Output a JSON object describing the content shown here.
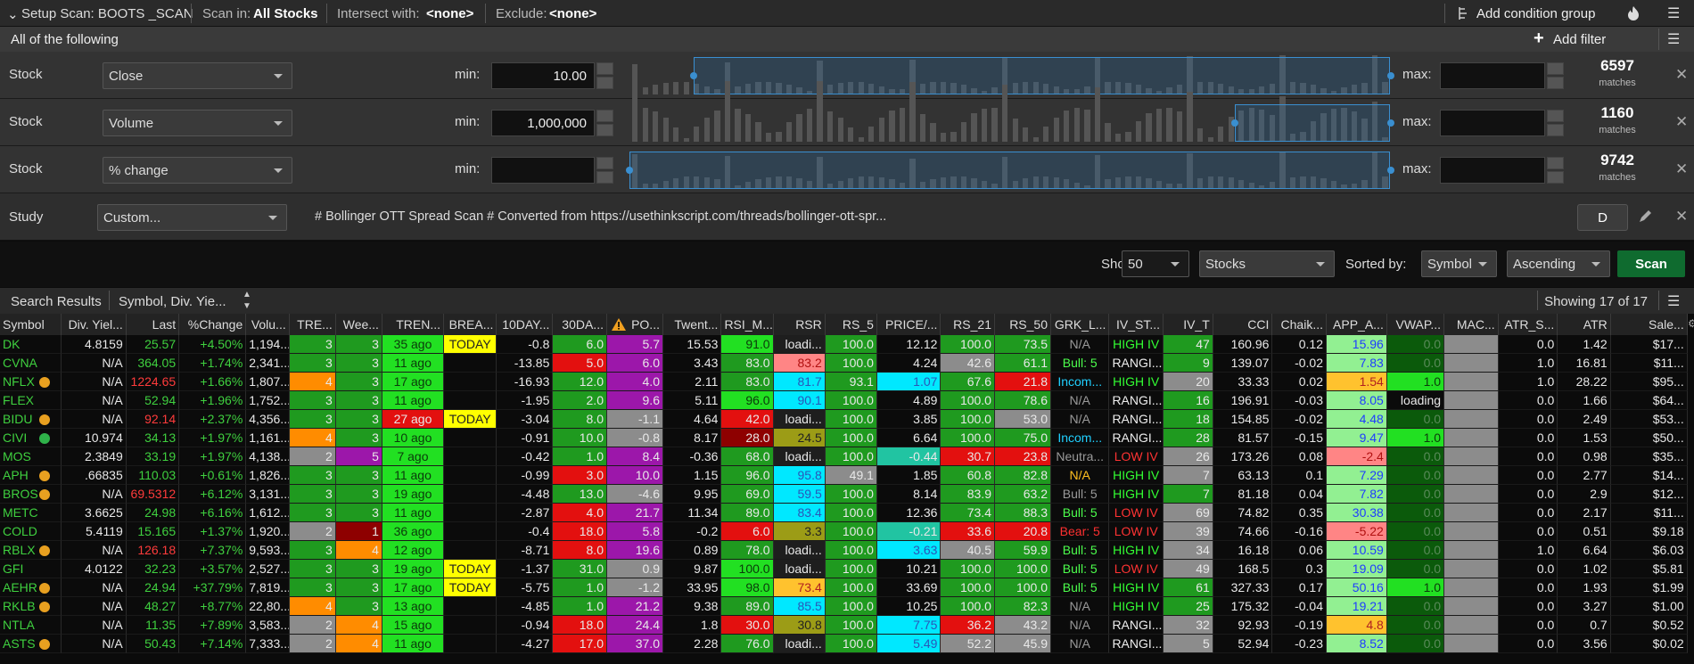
{
  "toolbar": {
    "setup_scan": "Setup Scan: BOOTS _SCAN",
    "scan_in_label": "Scan in:",
    "scan_in": "All Stocks",
    "intersect_label": "Intersect with:",
    "intersect": "<none>",
    "exclude_label": "Exclude:",
    "exclude": "<none>",
    "add_condition_group": "Add condition group"
  },
  "group": {
    "title": "All of the following",
    "add_filter": "Add filter"
  },
  "filters": [
    {
      "type": "Stock",
      "field": "Close",
      "min_label": "min:",
      "min": "10.00",
      "max_label": "max:",
      "matches": "6597",
      "matches_label": "matches"
    },
    {
      "type": "Stock",
      "field": "Volume",
      "min_label": "min:",
      "min": "1,000,000",
      "max_label": "max:",
      "matches": "1160",
      "matches_label": "matches"
    },
    {
      "type": "Stock",
      "field": "% change",
      "min_label": "min:",
      "max_label": "max:",
      "matches": "9742",
      "matches_label": "matches"
    }
  ],
  "study": {
    "type": "Study",
    "field": "Custom...",
    "script": "# Bollinger OTT Spread Scan # Converted from https://usethinkscript.com/threads/bollinger-ott-spr...",
    "aggregation": "D"
  },
  "controls": {
    "show_label": "Show:",
    "show": "50",
    "asset": "Stocks",
    "sorted_label": "Sorted by:",
    "sort_field": "Symbol",
    "sort_order": "Ascending",
    "scan": "Scan"
  },
  "results": {
    "tab": "Search Results",
    "columns_tab": "Symbol, Div. Yie...",
    "count": "Showing 17 of 17"
  },
  "table": {
    "columns": [
      "Symbol",
      "Div. Yiel...",
      "Last",
      "%Change",
      "Volu...",
      "TRE...",
      "Wee...",
      "TREN...",
      "BREA...",
      "10DAY...",
      "30DA...",
      "PO...",
      "Twent...",
      "RSI_M...",
      "RSR",
      "RS_5",
      "PRICE/...",
      "RS_21",
      "RS_50",
      "GRK_L...",
      "IV_ST...",
      "IV_T",
      "CCI",
      "Chaik...",
      "APP_A...",
      "VWAP...",
      "MAC...",
      "ATR_S...",
      "ATR",
      "Sale..."
    ],
    "rows": [
      [
        "DK",
        "4.8159",
        "25.57",
        "+4.50%",
        "1,194...",
        "3",
        "3",
        "35 ago",
        "TODAY",
        "-0.8",
        "6.0",
        "5.7",
        "15.53",
        "91.0",
        "loadi...",
        "100.0",
        "12.12",
        "100.0",
        "73.5",
        "N/A",
        "HIGH IV",
        "47",
        "160.96",
        "0.12",
        "15.96",
        "0.0",
        null,
        "0.0",
        "1.42",
        "$17..."
      ],
      [
        "CVNA",
        "N/A",
        "364.05",
        "+1.74%",
        "2,341...",
        "3",
        "3",
        "11 ago",
        null,
        "-13.85",
        "5.0",
        "6.0",
        "3.43",
        "83.0",
        "83.2",
        "100.0",
        "4.24",
        "42.6",
        "61.1",
        "Bull: 5",
        "RANGI...",
        "9",
        "139.07",
        "-0.02",
        "7.83",
        "0.0",
        null,
        "1.0",
        "16.81",
        "$11..."
      ],
      [
        "NFLX",
        "N/A",
        "1224.65",
        "+1.66%",
        "1,807...",
        "4",
        "3",
        "17 ago",
        null,
        "-16.93",
        "12.0",
        "4.0",
        "2.11",
        "83.0",
        "81.7",
        "93.1",
        "1.07",
        "67.6",
        "21.8",
        "Incom...",
        "HIGH IV",
        "20",
        "33.33",
        "0.02",
        "1.54",
        "1.0",
        null,
        "1.0",
        "28.22",
        "$95..."
      ],
      [
        "FLEX",
        "N/A",
        "52.94",
        "+1.96%",
        "1,752...",
        "3",
        "3",
        "11 ago",
        null,
        "-1.95",
        "2.0",
        "9.6",
        "5.11",
        "96.0",
        "90.1",
        "100.0",
        "4.89",
        "100.0",
        "78.6",
        "N/A",
        "RANGI...",
        "16",
        "196.91",
        "-0.03",
        "8.05",
        "loading",
        null,
        "0.0",
        "1.66",
        "$64..."
      ],
      [
        "BIDU",
        "N/A",
        "92.14",
        "+2.37%",
        "4,356...",
        "3",
        "3",
        "27 ago",
        "TODAY",
        "-3.04",
        "8.0",
        "-1.1",
        "4.64",
        "42.0",
        "loadi...",
        "100.0",
        "3.85",
        "100.0",
        "53.0",
        "N/A",
        "RANGI...",
        "18",
        "154.85",
        "-0.02",
        "4.48",
        "0.0",
        null,
        "0.0",
        "2.49",
        "$53..."
      ],
      [
        "CIVI",
        "10.974",
        "34.13",
        "+1.97%",
        "1,161...",
        "4",
        "3",
        "10 ago",
        null,
        "-0.91",
        "10.0",
        "-0.8",
        "8.17",
        "28.0",
        "24.5",
        "100.0",
        "6.64",
        "100.0",
        "75.0",
        "Incom...",
        "RANGI...",
        "28",
        "81.57",
        "-0.15",
        "9.47",
        "1.0",
        null,
        "0.0",
        "1.53",
        "$50..."
      ],
      [
        "MOS",
        "2.3849",
        "33.19",
        "+1.97%",
        "4,138...",
        "2",
        "5",
        "7 ago",
        null,
        "-0.42",
        "1.0",
        "8.4",
        "-0.36",
        "68.0",
        "loadi...",
        "100.0",
        "-0.44",
        "30.7",
        "23.8",
        "Neutra...",
        "LOW IV",
        "26",
        "173.26",
        "0.08",
        "-2.4",
        "0.0",
        null,
        "0.0",
        "0.98",
        "$35..."
      ],
      [
        "APH",
        ".66835",
        "110.03",
        "+0.61%",
        "1,826...",
        "3",
        "3",
        "11 ago",
        null,
        "-0.99",
        "3.0",
        "10.0",
        "1.15",
        "96.0",
        "95.8",
        "49.1",
        "1.85",
        "60.8",
        "82.8",
        "N/A",
        "HIGH IV",
        "7",
        "63.13",
        "0.1",
        "7.29",
        "0.0",
        null,
        "0.0",
        "2.77",
        "$14..."
      ],
      [
        "BROS",
        "N/A",
        "69.5312",
        "+6.12%",
        "3,131...",
        "3",
        "3",
        "19 ago",
        null,
        "-4.48",
        "13.0",
        "-4.6",
        "9.95",
        "69.0",
        "59.5",
        "100.0",
        "8.14",
        "83.9",
        "63.2",
        "Bull: 5",
        "HIGH IV",
        "7",
        "81.18",
        "0.04",
        "7.82",
        "0.0",
        null,
        "0.0",
        "2.9",
        "$12..."
      ],
      [
        "METC",
        "3.6625",
        "24.98",
        "+6.16%",
        "1,612...",
        "3",
        "3",
        "11 ago",
        null,
        "-2.87",
        "4.0",
        "21.7",
        "11.34",
        "89.0",
        "83.4",
        "100.0",
        "12.36",
        "73.4",
        "88.3",
        "Bull: 5",
        "LOW IV",
        "69",
        "74.82",
        "0.35",
        "30.38",
        "0.0",
        null,
        "0.0",
        "2.17",
        "$11..."
      ],
      [
        "COLD",
        "5.4119",
        "15.165",
        "+1.37%",
        "1,920...",
        "2",
        "1",
        "36 ago",
        null,
        "-0.4",
        "18.0",
        "5.8",
        "-0.2",
        "6.0",
        "3.3",
        "100.0",
        "-0.21",
        "33.6",
        "20.8",
        "Bear: 5",
        "LOW IV",
        "39",
        "74.66",
        "-0.16",
        "-5.22",
        "0.0",
        null,
        "0.0",
        "0.51",
        "$9.18"
      ],
      [
        "RBLX",
        "N/A",
        "126.18",
        "+7.37%",
        "9,593...",
        "3",
        "4",
        "12 ago",
        null,
        "-8.71",
        "8.0",
        "19.6",
        "0.89",
        "78.0",
        "loadi...",
        "100.0",
        "3.63",
        "40.5",
        "59.9",
        "Bull: 5",
        "HIGH IV",
        "34",
        "16.18",
        "0.06",
        "10.59",
        "0.0",
        null,
        "1.0",
        "6.64",
        "$6.03"
      ],
      [
        "GFI",
        "4.0122",
        "32.23",
        "+3.57%",
        "2,527...",
        "3",
        "3",
        "19 ago",
        "TODAY",
        "-1.37",
        "31.0",
        "0.9",
        "9.87",
        "100.0",
        "loadi...",
        "100.0",
        "10.21",
        "100.0",
        "100.0",
        "Bull: 5",
        "LOW IV",
        "49",
        "168.5",
        "0.3",
        "19.09",
        "0.0",
        null,
        "0.0",
        "1.02",
        "$5.81"
      ],
      [
        "AEHR",
        "N/A",
        "24.94",
        "+37.79%",
        "7,819...",
        "3",
        "3",
        "17 ago",
        "TODAY",
        "-5.75",
        "1.0",
        "-1.2",
        "33.95",
        "98.0",
        "73.4",
        "100.0",
        "33.69",
        "100.0",
        "100.0",
        "Bull: 5",
        "HIGH IV",
        "61",
        "327.33",
        "0.17",
        "50.16",
        "1.0",
        null,
        "0.0",
        "1.93",
        "$1.99"
      ],
      [
        "RKLB",
        "N/A",
        "48.27",
        "+8.77%",
        "22,80...",
        "4",
        "3",
        "13 ago",
        null,
        "-4.85",
        "1.0",
        "21.2",
        "9.38",
        "89.0",
        "85.5",
        "100.0",
        "10.25",
        "100.0",
        "82.3",
        "N/A",
        "HIGH IV",
        "25",
        "175.32",
        "-0.04",
        "19.21",
        "0.0",
        null,
        "0.0",
        "3.27",
        "$1.00"
      ],
      [
        "NTLA",
        "N/A",
        "11.35",
        "+7.89%",
        "3,583...",
        "2",
        "4",
        "15 ago",
        null,
        "-0.94",
        "18.0",
        "24.4",
        "1.8",
        "30.0",
        "30.8",
        "100.0",
        "7.75",
        "36.2",
        "43.2",
        "N/A",
        "RANGI...",
        "32",
        "92.93",
        "-0.19",
        "4.8",
        "0.0",
        null,
        "0.0",
        "0.7",
        "$0.52"
      ],
      [
        "ASTS",
        "N/A",
        "50.43",
        "+7.14%",
        "7,333...",
        "2",
        "4",
        "11 ago",
        null,
        "-4.27",
        "17.0",
        "37.0",
        "2.28",
        "76.0",
        "loadi...",
        "100.0",
        "5.49",
        "52.2",
        "45.9",
        "N/A",
        "RANGI...",
        "5",
        "52.94",
        "-0.23",
        "8.52",
        "0.0",
        null,
        "0.0",
        "3.56",
        "$0.02"
      ]
    ]
  }
}
